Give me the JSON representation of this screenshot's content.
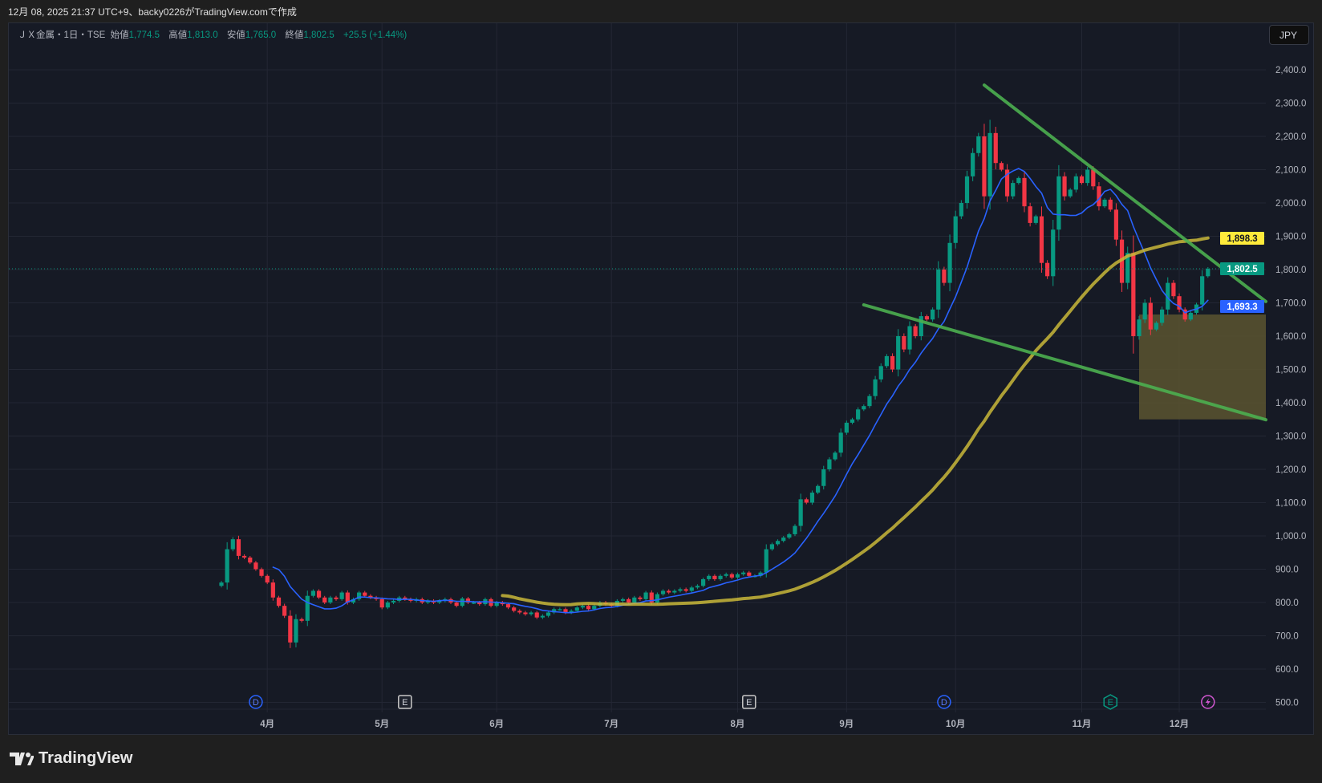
{
  "caption": "12月 08, 2025 21:37 UTC+9、backy0226がTradingView.comで作成",
  "legend": {
    "symbol": "ＪＸ金属・1日・TSE",
    "open_label": "始値",
    "open": "1,774.5",
    "high_label": "高値",
    "high": "1,813.0",
    "low_label": "安値",
    "low": "1,765.0",
    "close_label": "終値",
    "close": "1,802.5",
    "change": "+25.5 (+1.44%)"
  },
  "currency": "JPY",
  "footer": {
    "brand": "TradingView"
  },
  "colors": {
    "up": "#089981",
    "down": "#f23645",
    "ma_short": "#2962ff",
    "ma_long": "#c9b83a",
    "trendline": "#4caf50",
    "zone": "#5a5530"
  },
  "chart_data": {
    "type": "candlestick",
    "ylim": [
      470,
      2480
    ],
    "y_ticks": [
      500,
      600,
      700,
      800,
      900,
      1000,
      1100,
      1200,
      1300,
      1400,
      1500,
      1600,
      1700,
      1800,
      1900,
      2000,
      2100,
      2200,
      2300,
      2400
    ],
    "y_tick_labels": [
      "500.0",
      "600.0",
      "700.0",
      "800.0",
      "900.0",
      "1,000.0",
      "1,100.0",
      "1,200.0",
      "1,300.0",
      "1,400.0",
      "1,500.0",
      "1,600.0",
      "1,700.0",
      "1,800.0",
      "1,900.0",
      "2,000.0",
      "2,100.0",
      "2,200.0",
      "2,300.0",
      "2,400.0"
    ],
    "x_ticks": [
      {
        "label": "4月",
        "index": 8
      },
      {
        "label": "5月",
        "index": 28
      },
      {
        "label": "6月",
        "index": 48
      },
      {
        "label": "7月",
        "index": 68
      },
      {
        "label": "8月",
        "index": 90
      },
      {
        "label": "9月",
        "index": 109
      },
      {
        "label": "10月",
        "index": 128
      },
      {
        "label": "11月",
        "index": 150
      },
      {
        "label": "12月",
        "index": 167
      }
    ],
    "first_open": 850,
    "closes": [
      860,
      960,
      990,
      940,
      935,
      920,
      900,
      880,
      860,
      815,
      790,
      760,
      680,
      750,
      745,
      820,
      835,
      815,
      800,
      815,
      810,
      830,
      800,
      810,
      830,
      820,
      815,
      810,
      785,
      800,
      805,
      815,
      810,
      805,
      810,
      800,
      805,
      800,
      805,
      810,
      800,
      790,
      812,
      800,
      800,
      795,
      810,
      790,
      800,
      795,
      785,
      775,
      770,
      765,
      770,
      755,
      760,
      770,
      780,
      780,
      770,
      775,
      785,
      790,
      780,
      790,
      800,
      795,
      790,
      805,
      810,
      800,
      815,
      810,
      830,
      800,
      825,
      835,
      830,
      835,
      840,
      835,
      845,
      850,
      870,
      880,
      870,
      880,
      885,
      875,
      885,
      890,
      880,
      880,
      890,
      960,
      975,
      985,
      995,
      1005,
      1030,
      1110,
      1100,
      1130,
      1150,
      1200,
      1230,
      1250,
      1310,
      1340,
      1350,
      1380,
      1390,
      1420,
      1470,
      1510,
      1540,
      1500,
      1600,
      1560,
      1630,
      1600,
      1660,
      1650,
      1680,
      1800,
      1760,
      1880,
      1960,
      2000,
      2080,
      2150,
      2200,
      2020,
      2210,
      2120,
      2100,
      2020,
      2060,
      2075,
      1990,
      1940,
      1960,
      1820,
      1780,
      1920,
      2080,
      2020,
      2040,
      2080,
      2060,
      2100,
      2050,
      1990,
      2010,
      1980,
      1890,
      1760,
      1850,
      1600,
      1650,
      1700,
      1620,
      1640,
      1680,
      1760,
      1720,
      1680,
      1650,
      1670,
      1695,
      1780,
      1802.5
    ],
    "moving_averages": [
      {
        "name": "MA short",
        "period": 10,
        "last_label": "1,693.3"
      },
      {
        "name": "MA long",
        "period": 50,
        "last_label": "1,898.3"
      }
    ],
    "last_price_label": "1,802.5",
    "trendlines": [
      {
        "name": "upper-trendline",
        "from": {
          "index": 133,
          "price": 2354
        },
        "to": {
          "index": 183,
          "price": 1704
        }
      },
      {
        "name": "lower-trendline",
        "from": {
          "index": 112,
          "price": 1694
        },
        "to": {
          "index": 183,
          "price": 1349
        }
      }
    ],
    "zone": {
      "from_index": 160,
      "to_index": 183,
      "top": 1665,
      "bottom": 1350
    },
    "events": [
      {
        "type": "D",
        "index": 6
      },
      {
        "type": "E",
        "index": 32
      },
      {
        "type": "E",
        "index": 92
      },
      {
        "type": "D",
        "index": 126
      },
      {
        "type": "E-green",
        "index": 155
      },
      {
        "type": "lightning",
        "index": 172
      }
    ]
  }
}
